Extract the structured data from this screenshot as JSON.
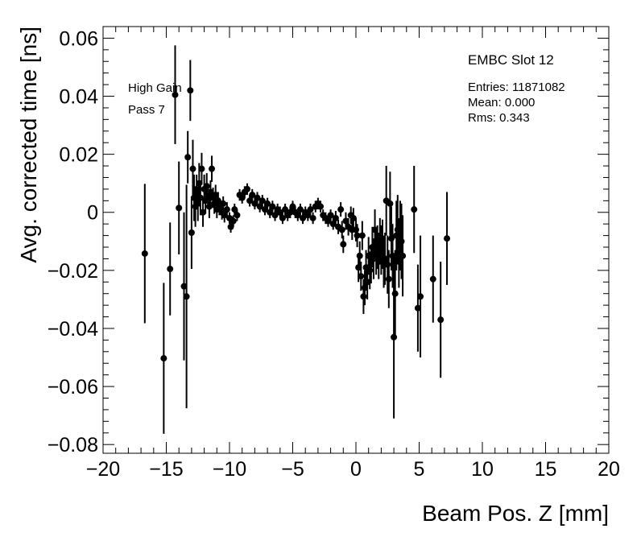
{
  "chart_data": {
    "type": "scatter",
    "xlabel": "Beam Pos. Z [mm]",
    "ylabel": "Avg. corrected time [ns]",
    "xlim": [
      -20,
      20
    ],
    "ylim": [
      -0.083,
      0.064
    ],
    "x_ticks": [
      -20,
      -15,
      -10,
      -5,
      0,
      5,
      10,
      15,
      20
    ],
    "x_tick_labels": [
      "−20",
      "−15",
      "−10",
      "−5",
      "0",
      "5",
      "10",
      "15",
      "20"
    ],
    "y_ticks": [
      -0.08,
      -0.06,
      -0.04,
      -0.02,
      0,
      0.02,
      0.04,
      0.06
    ],
    "y_tick_labels": [
      "−0.08",
      "−0.06",
      "−0.04",
      "−0.02",
      "0",
      "0.02",
      "0.04",
      "0.06"
    ],
    "grid": false,
    "stats_box": {
      "title": "EMBC Slot 12",
      "entries": "Entries: 11871082",
      "mean": "Mean: 0.000",
      "rms": "Rms: 0.343"
    },
    "annotations": [
      "High Gain",
      "Pass 7"
    ],
    "marker_color": "#000000",
    "points": [
      {
        "x": -16.7,
        "y": -0.0142,
        "err": 0.024
      },
      {
        "x": -15.2,
        "y": -0.0503,
        "err": 0.026
      },
      {
        "x": -14.7,
        "y": -0.0195,
        "err": 0.016
      },
      {
        "x": -14.3,
        "y": 0.0405,
        "err": 0.017
      },
      {
        "x": -14.0,
        "y": 0.0015,
        "err": 0.016
      },
      {
        "x": -13.6,
        "y": -0.0255,
        "err": 0.0255
      },
      {
        "x": -13.4,
        "y": -0.029,
        "err": 0.0385
      },
      {
        "x": -13.3,
        "y": 0.019,
        "err": 0.009
      },
      {
        "x": -13.1,
        "y": 0.042,
        "err": 0.0105
      },
      {
        "x": -13.0,
        "y": -0.007,
        "err": 0.0125
      },
      {
        "x": -12.9,
        "y": 0.015,
        "err": 0.01
      },
      {
        "x": -12.8,
        "y": 0.005,
        "err": 0.008
      },
      {
        "x": -12.7,
        "y": 0.002,
        "err": 0.007
      },
      {
        "x": -12.6,
        "y": 0.007,
        "err": 0.006
      },
      {
        "x": -12.5,
        "y": 0.003,
        "err": 0.006
      },
      {
        "x": -12.4,
        "y": 0.01,
        "err": 0.007
      },
      {
        "x": -12.3,
        "y": 0.005,
        "err": 0.006
      },
      {
        "x": -12.2,
        "y": 0.015,
        "err": 0.0055
      },
      {
        "x": -12.1,
        "y": 0.0,
        "err": 0.005
      },
      {
        "x": -12.0,
        "y": 0.008,
        "err": 0.005
      },
      {
        "x": -11.9,
        "y": 0.004,
        "err": 0.0045
      },
      {
        "x": -11.8,
        "y": 0.009,
        "err": 0.0045
      },
      {
        "x": -11.7,
        "y": 0.006,
        "err": 0.004
      },
      {
        "x": -11.6,
        "y": 0.002,
        "err": 0.004
      },
      {
        "x": -11.5,
        "y": 0.007,
        "err": 0.004
      },
      {
        "x": -11.4,
        "y": 0.015,
        "err": 0.0045
      },
      {
        "x": -11.3,
        "y": 0.005,
        "err": 0.0035
      },
      {
        "x": -11.2,
        "y": 0.003,
        "err": 0.0035
      },
      {
        "x": -11.1,
        "y": 0.006,
        "err": 0.0035
      },
      {
        "x": -11.0,
        "y": 0.001,
        "err": 0.003
      },
      {
        "x": -10.9,
        "y": 0.004,
        "err": 0.003
      },
      {
        "x": -10.8,
        "y": 0.002,
        "err": 0.003
      },
      {
        "x": -10.6,
        "y": 0.0,
        "err": 0.0025
      },
      {
        "x": -10.5,
        "y": 0.003,
        "err": 0.0025
      },
      {
        "x": -10.4,
        "y": -0.001,
        "err": 0.0025
      },
      {
        "x": -10.2,
        "y": 0.001,
        "err": 0.0025
      },
      {
        "x": -10.0,
        "y": -0.002,
        "err": 0.002
      },
      {
        "x": -9.9,
        "y": -0.005,
        "err": 0.002
      },
      {
        "x": -9.7,
        "y": -0.003,
        "err": 0.002
      },
      {
        "x": -9.6,
        "y": 0.001,
        "err": 0.002
      },
      {
        "x": -9.4,
        "y": -0.001,
        "err": 0.002
      },
      {
        "x": -9.2,
        "y": 0.006,
        "err": 0.002
      },
      {
        "x": -9.0,
        "y": 0.005,
        "err": 0.002
      },
      {
        "x": -8.8,
        "y": 0.007,
        "err": 0.002
      },
      {
        "x": -8.6,
        "y": 0.008,
        "err": 0.002
      },
      {
        "x": -8.4,
        "y": 0.004,
        "err": 0.002
      },
      {
        "x": -8.2,
        "y": 0.006,
        "err": 0.002
      },
      {
        "x": -8.0,
        "y": 0.003,
        "err": 0.002
      },
      {
        "x": -7.8,
        "y": 0.005,
        "err": 0.002
      },
      {
        "x": -7.6,
        "y": 0.002,
        "err": 0.002
      },
      {
        "x": -7.4,
        "y": 0.004,
        "err": 0.002
      },
      {
        "x": -7.2,
        "y": 0.001,
        "err": 0.002
      },
      {
        "x": -7.0,
        "y": 0.003,
        "err": 0.002
      },
      {
        "x": -6.8,
        "y": 0.0,
        "err": 0.002
      },
      {
        "x": -6.6,
        "y": 0.002,
        "err": 0.002
      },
      {
        "x": -6.4,
        "y": -0.001,
        "err": 0.002
      },
      {
        "x": -6.2,
        "y": 0.001,
        "err": 0.002
      },
      {
        "x": -6.0,
        "y": 0.0,
        "err": 0.002
      },
      {
        "x": -5.8,
        "y": -0.002,
        "err": 0.002
      },
      {
        "x": -5.6,
        "y": 0.001,
        "err": 0.002
      },
      {
        "x": -5.4,
        "y": -0.001,
        "err": 0.002
      },
      {
        "x": -5.2,
        "y": 0.0,
        "err": 0.002
      },
      {
        "x": -5.0,
        "y": 0.002,
        "err": 0.002
      },
      {
        "x": -4.8,
        "y": 0.0,
        "err": 0.002
      },
      {
        "x": -4.6,
        "y": -0.001,
        "err": 0.002
      },
      {
        "x": -4.4,
        "y": 0.001,
        "err": 0.002
      },
      {
        "x": -4.2,
        "y": -0.002,
        "err": 0.002
      },
      {
        "x": -4.0,
        "y": 0.0,
        "err": 0.002
      },
      {
        "x": -3.8,
        "y": -0.001,
        "err": 0.002
      },
      {
        "x": -3.6,
        "y": 0.001,
        "err": 0.002
      },
      {
        "x": -3.4,
        "y": -0.002,
        "err": 0.002
      },
      {
        "x": -3.2,
        "y": 0.002,
        "err": 0.002
      },
      {
        "x": -3.0,
        "y": 0.003,
        "err": 0.002
      },
      {
        "x": -2.8,
        "y": 0.002,
        "err": 0.002
      },
      {
        "x": -2.6,
        "y": -0.001,
        "err": 0.002
      },
      {
        "x": -2.4,
        "y": -0.002,
        "err": 0.002
      },
      {
        "x": -2.2,
        "y": -0.003,
        "err": 0.002
      },
      {
        "x": -2.0,
        "y": -0.001,
        "err": 0.002
      },
      {
        "x": -1.8,
        "y": -0.004,
        "err": 0.002
      },
      {
        "x": -1.6,
        "y": -0.002,
        "err": 0.0025
      },
      {
        "x": -1.4,
        "y": -0.005,
        "err": 0.0025
      },
      {
        "x": -1.2,
        "y": 0.001,
        "err": 0.0025
      },
      {
        "x": -1.1,
        "y": -0.006,
        "err": 0.003
      },
      {
        "x": -1.0,
        "y": -0.011,
        "err": 0.003
      },
      {
        "x": -0.8,
        "y": -0.003,
        "err": 0.003
      },
      {
        "x": -0.6,
        "y": -0.005,
        "err": 0.003
      },
      {
        "x": -0.4,
        "y": -0.001,
        "err": 0.003
      },
      {
        "x": -0.3,
        "y": -0.006,
        "err": 0.0035
      },
      {
        "x": -0.2,
        "y": -0.002,
        "err": 0.0035
      },
      {
        "x": 0.0,
        "y": -0.006,
        "err": 0.004
      },
      {
        "x": 0.1,
        "y": -0.008,
        "err": 0.004
      },
      {
        "x": 0.2,
        "y": -0.019,
        "err": 0.005
      },
      {
        "x": 0.3,
        "y": -0.015,
        "err": 0.005
      },
      {
        "x": 0.4,
        "y": -0.022,
        "err": 0.005
      },
      {
        "x": 0.5,
        "y": -0.008,
        "err": 0.005
      },
      {
        "x": 0.6,
        "y": -0.029,
        "err": 0.006
      },
      {
        "x": 0.7,
        "y": -0.026,
        "err": 0.006
      },
      {
        "x": 0.8,
        "y": -0.019,
        "err": 0.006
      },
      {
        "x": 0.9,
        "y": -0.024,
        "err": 0.006
      },
      {
        "x": 1.0,
        "y": -0.015,
        "err": 0.0065
      },
      {
        "x": 1.1,
        "y": -0.02,
        "err": 0.0065
      },
      {
        "x": 1.2,
        "y": -0.018,
        "err": 0.0065
      },
      {
        "x": 1.3,
        "y": -0.012,
        "err": 0.007
      },
      {
        "x": 1.4,
        "y": -0.016,
        "err": 0.007
      },
      {
        "x": 1.5,
        "y": -0.006,
        "err": 0.007
      },
      {
        "x": 1.6,
        "y": -0.014,
        "err": 0.0075
      },
      {
        "x": 1.7,
        "y": -0.012,
        "err": 0.0075
      },
      {
        "x": 1.8,
        "y": -0.015,
        "err": 0.008
      },
      {
        "x": 1.9,
        "y": -0.01,
        "err": 0.008
      },
      {
        "x": 2.0,
        "y": -0.013,
        "err": 0.0085
      },
      {
        "x": 2.1,
        "y": -0.011,
        "err": 0.0085
      },
      {
        "x": 2.2,
        "y": -0.017,
        "err": 0.009
      },
      {
        "x": 2.3,
        "y": -0.016,
        "err": 0.009
      },
      {
        "x": 2.4,
        "y": 0.004,
        "err": 0.012
      },
      {
        "x": 2.5,
        "y": -0.018,
        "err": 0.01
      },
      {
        "x": 2.6,
        "y": -0.023,
        "err": 0.01
      },
      {
        "x": 2.7,
        "y": 0.003,
        "err": 0.011
      },
      {
        "x": 2.8,
        "y": -0.009,
        "err": 0.011
      },
      {
        "x": 2.9,
        "y": -0.015,
        "err": 0.011
      },
      {
        "x": 3.0,
        "y": -0.043,
        "err": 0.028
      },
      {
        "x": 3.1,
        "y": -0.028,
        "err": 0.015
      },
      {
        "x": 3.2,
        "y": -0.008,
        "err": 0.012
      },
      {
        "x": 3.3,
        "y": -0.006,
        "err": 0.012
      },
      {
        "x": 3.4,
        "y": -0.014,
        "err": 0.012
      },
      {
        "x": 3.5,
        "y": -0.008,
        "err": 0.012
      },
      {
        "x": 3.6,
        "y": -0.01,
        "err": 0.013
      },
      {
        "x": 3.7,
        "y": -0.015,
        "err": 0.014
      },
      {
        "x": 4.6,
        "y": 0.001,
        "err": 0.015
      },
      {
        "x": 4.9,
        "y": -0.033,
        "err": 0.015
      },
      {
        "x": 5.1,
        "y": -0.029,
        "err": 0.021
      },
      {
        "x": 6.1,
        "y": -0.023,
        "err": 0.015
      },
      {
        "x": 6.7,
        "y": -0.037,
        "err": 0.02
      },
      {
        "x": 7.2,
        "y": -0.009,
        "err": 0.016
      }
    ]
  }
}
